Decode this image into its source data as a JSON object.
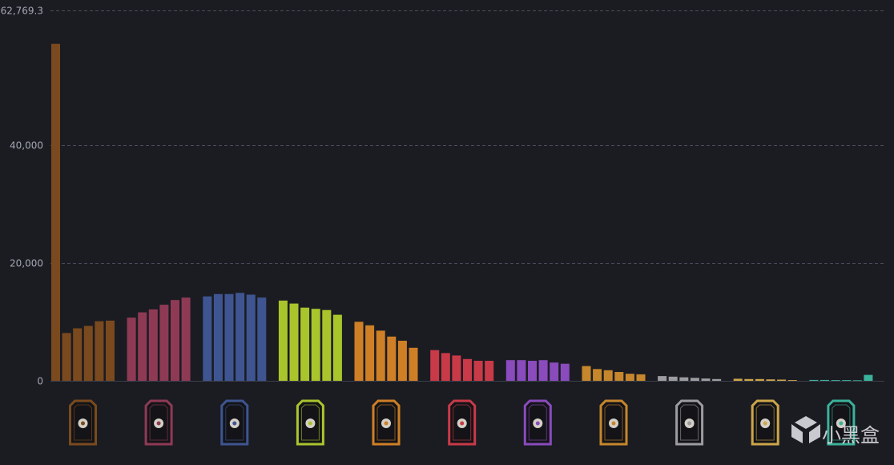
{
  "chart_data": {
    "type": "bar",
    "ylim": [
      0,
      62769.3
    ],
    "y_ticks": [
      {
        "value": 62769.3,
        "label": "62,769.3"
      },
      {
        "value": 40000,
        "label": "40,000"
      },
      {
        "value": 20000,
        "label": "20,000"
      },
      {
        "value": 0,
        "label": "0"
      }
    ],
    "grid": true,
    "legend": "none",
    "groups": [
      {
        "icon": "hand-icon",
        "color": "#7a4a1e",
        "values": [
          57100,
          8100,
          8900,
          9300,
          10100,
          10200
        ]
      },
      {
        "icon": "eye-book-icon",
        "color": "#8f3a55",
        "values": [
          10700,
          11600,
          12100,
          12900,
          13700,
          14100
        ]
      },
      {
        "icon": "potion-icon",
        "color": "#3e5591",
        "values": [
          14300,
          14700,
          14700,
          14900,
          14600,
          14100
        ]
      },
      {
        "icon": "leaf-hand-icon",
        "color": "#a9c52c",
        "values": [
          13600,
          13100,
          12400,
          12200,
          12000,
          11200
        ]
      },
      {
        "icon": "dagger-icon",
        "color": "#cf7f25",
        "values": [
          10000,
          9400,
          8500,
          7500,
          6800,
          5600
        ]
      },
      {
        "icon": "crossed-hands-icon",
        "color": "#c93a48",
        "values": [
          5200,
          4700,
          4300,
          3700,
          3400,
          3400
        ]
      },
      {
        "icon": "crown-icon",
        "color": "#8a4bbd",
        "values": [
          3500,
          3500,
          3400,
          3500,
          3100,
          2900
        ]
      },
      {
        "icon": "ram-skull-icon",
        "color": "#c6872c",
        "values": [
          2500,
          2000,
          1800,
          1500,
          1200,
          1100
        ]
      },
      {
        "icon": "reaper-icon",
        "color": "#9c9ca1",
        "values": [
          800,
          700,
          600,
          500,
          400,
          300
        ]
      },
      {
        "icon": "sun-icon",
        "color": "#cda64a",
        "values": [
          350,
          300,
          300,
          250,
          200,
          120
        ]
      },
      {
        "icon": "winged-emblem-icon",
        "color": "#3bb29b",
        "values": [
          150,
          150,
          120,
          120,
          100,
          1000
        ]
      }
    ]
  },
  "watermark": {
    "text": "小黑盒",
    "icon": "heybox-logo-icon"
  }
}
